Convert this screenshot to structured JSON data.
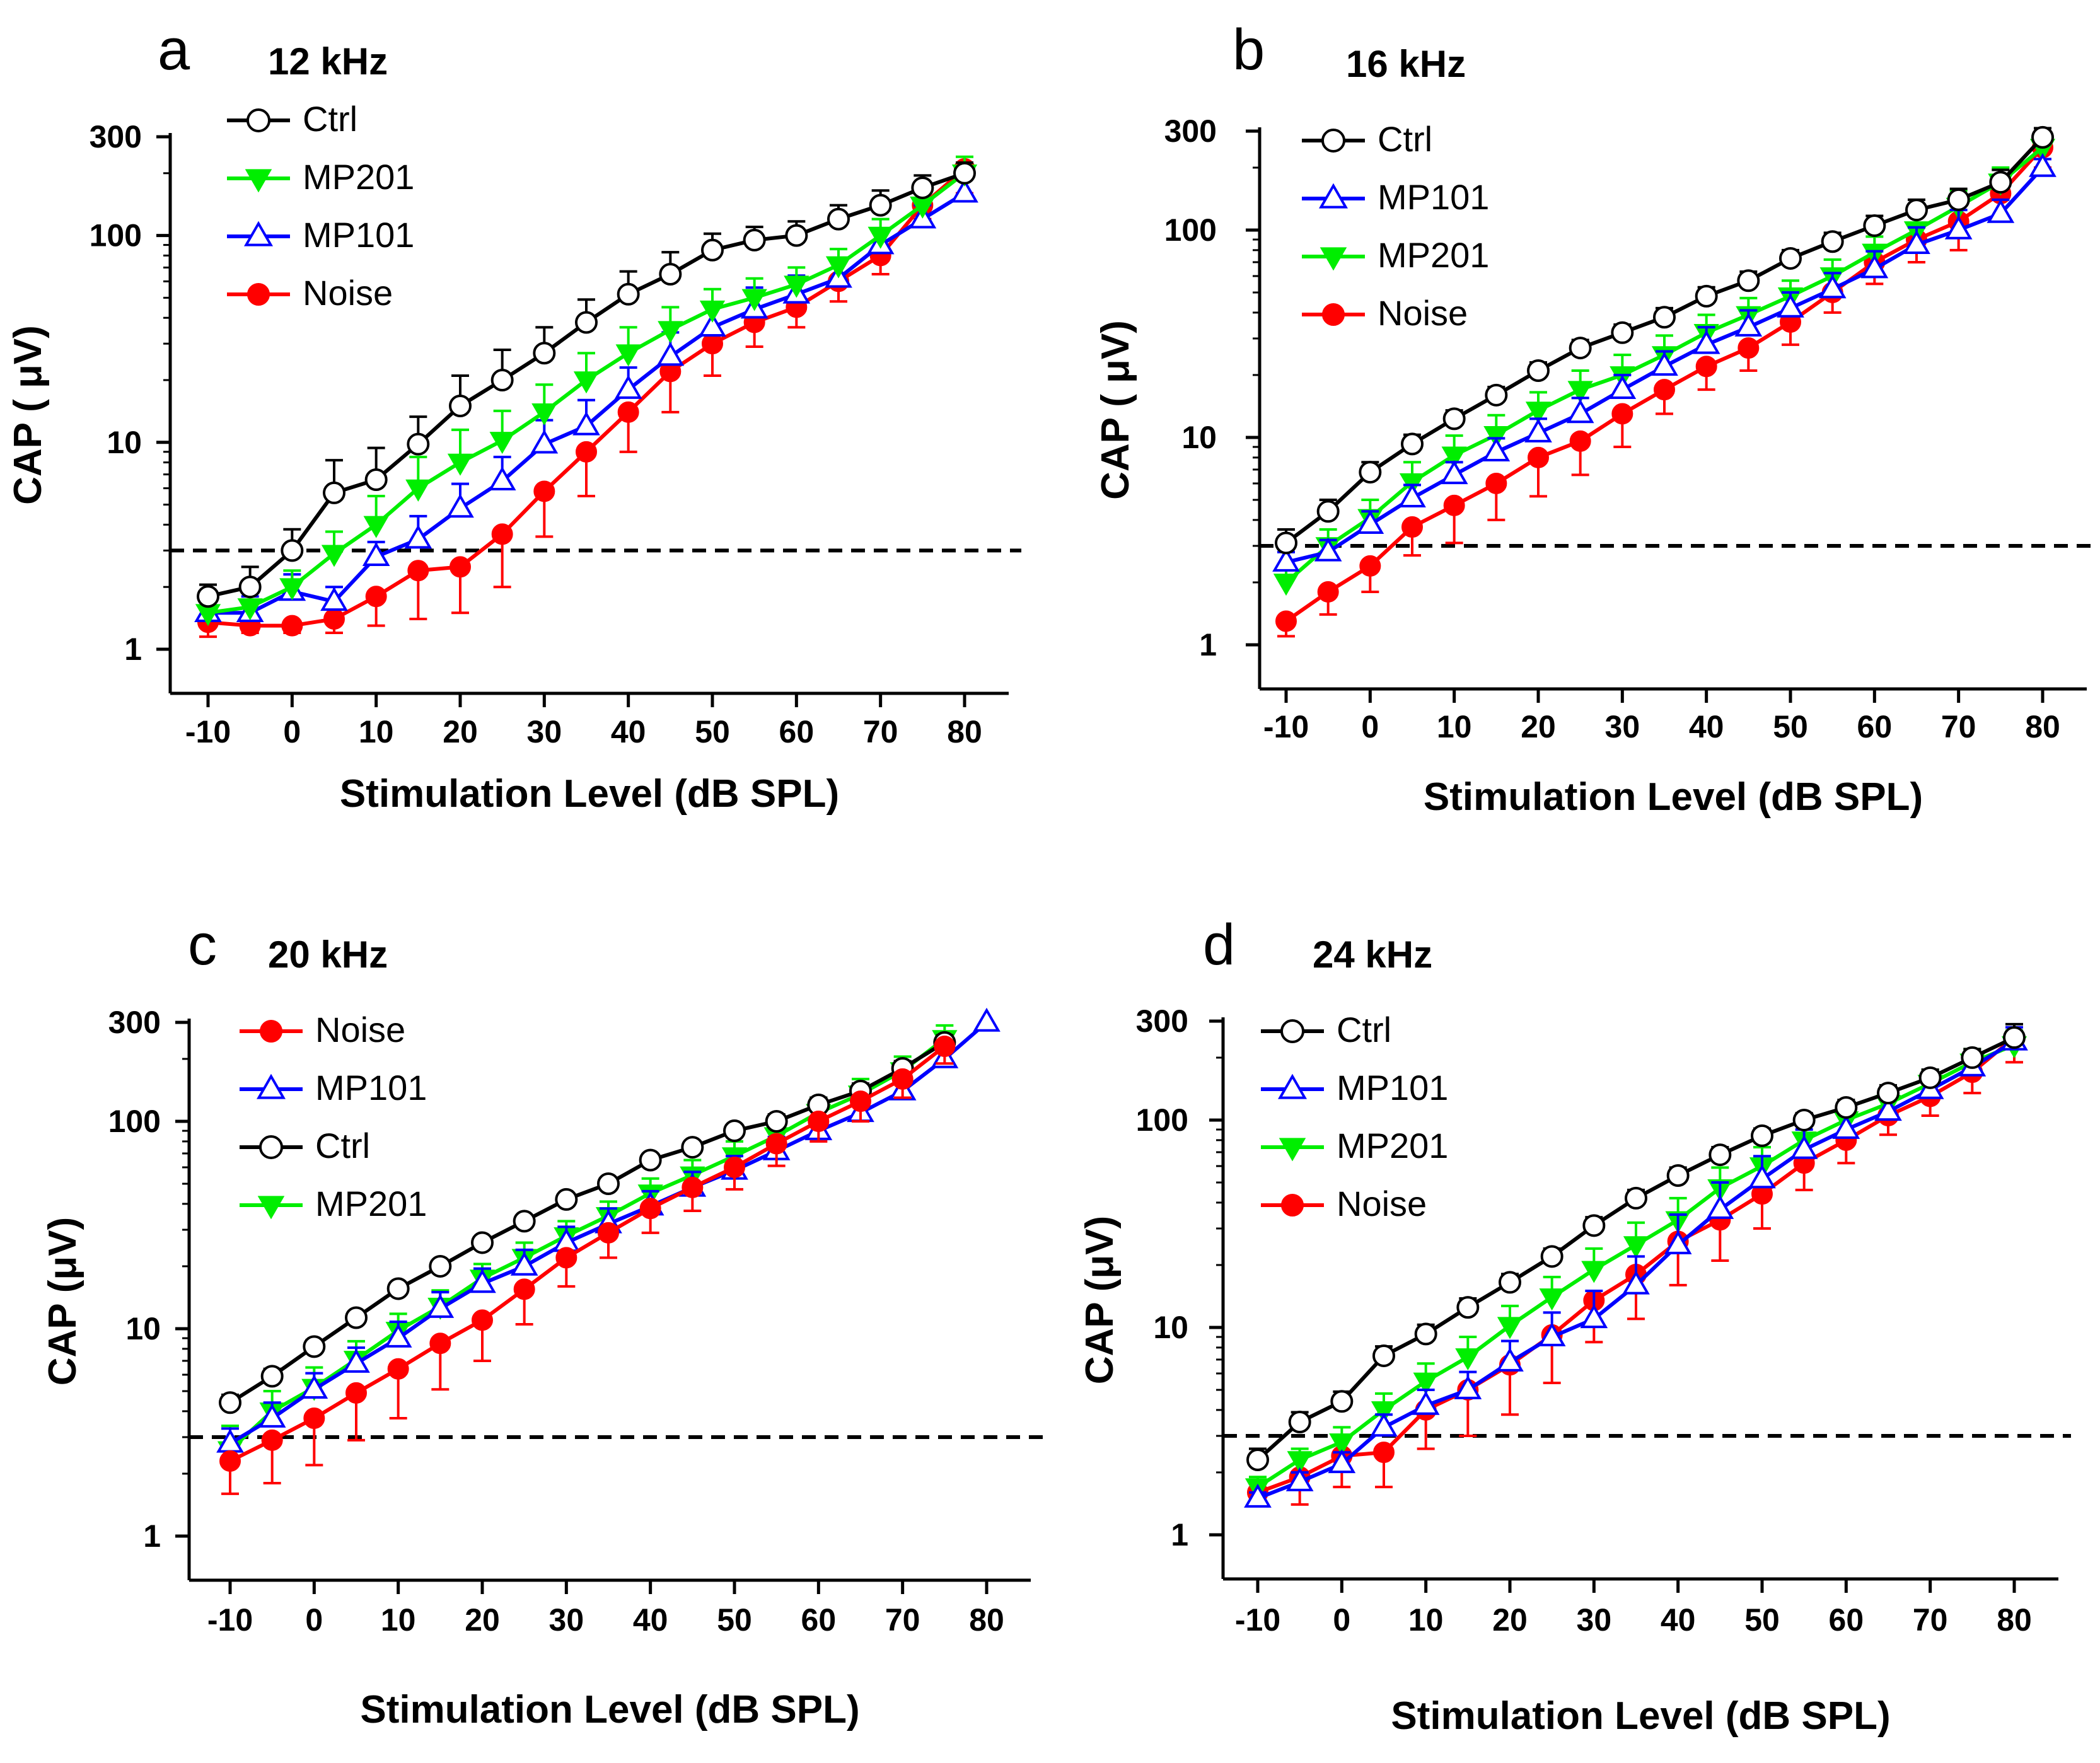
{
  "figure": {
    "y_ticks": [
      "1",
      "10",
      "100",
      "300"
    ],
    "x_ticks": [
      "-10",
      "0",
      "10",
      "20",
      "30",
      "40",
      "50",
      "60",
      "70",
      "80"
    ],
    "threshold_uV": 3
  },
  "series_styles": {
    "Ctrl": {
      "color": "#000000",
      "marker": "open-circle"
    },
    "MP201": {
      "color": "#00ee00",
      "marker": "filled-down-triangle"
    },
    "MP101": {
      "color": "#0000ff",
      "marker": "open-up-triangle"
    },
    "Noise": {
      "color": "#ff0000",
      "marker": "filled-circle"
    }
  },
  "chart_data": [
    {
      "type": "line",
      "panel_letter": "a",
      "title": "12 kHz",
      "xlabel": "Stimulation Level (dB SPL)",
      "ylabel": "CAP ( μV)",
      "yscale": "log",
      "ylim": [
        1,
        300
      ],
      "xlim": [
        -10,
        80
      ],
      "threshold_line": 3,
      "legend": [
        "Ctrl",
        "MP201",
        "MP101",
        "Noise"
      ],
      "series": [
        {
          "name": "Ctrl",
          "x": [
            -10,
            -5,
            0,
            5,
            10,
            15,
            20,
            25,
            30,
            35,
            40,
            45,
            50,
            55,
            60,
            65,
            70,
            75,
            80
          ],
          "values": [
            1.8,
            2.0,
            3.0,
            5.7,
            6.6,
            9.8,
            15,
            20,
            27,
            38,
            52,
            65,
            85,
            95,
            100,
            120,
            140,
            170,
            200
          ],
          "errors": [
            0.25,
            0.5,
            0.8,
            2.5,
            2.8,
            3.5,
            6,
            8,
            9,
            11,
            15,
            18,
            17,
            15,
            17,
            20,
            25,
            25,
            25
          ]
        },
        {
          "name": "MP201",
          "x": [
            -10,
            -5,
            0,
            5,
            10,
            15,
            20,
            25,
            30,
            35,
            40,
            45,
            50,
            55,
            60,
            65,
            70,
            75,
            80
          ],
          "values": [
            1.5,
            1.6,
            2.0,
            2.9,
            4.0,
            6.0,
            8.0,
            10.2,
            14,
            20,
            27,
            35,
            44,
            50,
            58,
            72,
            100,
            140,
            200
          ],
          "errors": [
            0.3,
            0.3,
            0.4,
            0.8,
            1.5,
            2.5,
            3.5,
            4,
            5,
            7,
            9,
            10,
            11,
            12,
            12,
            14,
            20,
            25,
            40
          ]
        },
        {
          "name": "MP101",
          "x": [
            -10,
            -5,
            0,
            5,
            10,
            15,
            20,
            25,
            30,
            35,
            40,
            45,
            50,
            55,
            60,
            65,
            70,
            75,
            80
          ],
          "values": [
            1.5,
            1.5,
            1.9,
            1.7,
            2.8,
            3.4,
            4.8,
            6.5,
            9.8,
            12,
            18,
            26,
            36,
            44,
            52,
            62,
            90,
            120,
            160
          ],
          "errors": [
            0.3,
            0.3,
            0.4,
            0.3,
            0.5,
            1,
            1.5,
            2,
            3,
            4,
            5,
            8,
            10,
            12,
            12,
            14,
            15,
            20,
            40
          ]
        },
        {
          "name": "Noise",
          "x": [
            -10,
            -5,
            0,
            5,
            10,
            15,
            20,
            25,
            30,
            35,
            40,
            45,
            50,
            55,
            60,
            65,
            70,
            75,
            80
          ],
          "values": [
            1.35,
            1.3,
            1.3,
            1.4,
            1.8,
            2.4,
            2.5,
            3.6,
            5.8,
            9,
            14,
            22,
            30,
            38,
            45,
            60,
            80,
            140,
            210
          ],
          "errors": [
            0.2,
            0.1,
            0.1,
            0.2,
            0.5,
            1,
            1,
            1.6,
            2.3,
            3.5,
            5,
            8,
            9,
            9,
            9,
            12,
            15,
            20,
            50
          ]
        }
      ]
    },
    {
      "type": "line",
      "panel_letter": "b",
      "title": "16 kHz",
      "xlabel": "Stimulation Level (dB SPL)",
      "ylabel": "CAP ( μV)",
      "yscale": "log",
      "ylim": [
        1,
        300
      ],
      "xlim": [
        -10,
        80
      ],
      "threshold_line": 3,
      "legend": [
        "Ctrl",
        "MP101",
        "MP201",
        "Noise"
      ],
      "series": [
        {
          "name": "Ctrl",
          "x": [
            -10,
            -5,
            0,
            5,
            10,
            15,
            20,
            25,
            30,
            35,
            40,
            45,
            50,
            55,
            60,
            65,
            70,
            75,
            80
          ],
          "values": [
            3.1,
            4.4,
            6.8,
            9.3,
            12.3,
            16,
            21,
            27,
            32,
            38,
            48,
            57,
            73,
            88,
            105,
            125,
            140,
            170,
            280
          ],
          "errors": [
            0.5,
            0.6,
            0.8,
            1,
            1.2,
            1.5,
            2,
            2.5,
            3,
            4,
            5,
            6,
            7,
            9,
            12,
            15,
            18,
            25,
            30
          ]
        },
        {
          "name": "MP101",
          "x": [
            -10,
            -5,
            0,
            5,
            10,
            15,
            20,
            25,
            30,
            35,
            40,
            45,
            50,
            55,
            60,
            65,
            70,
            75,
            80
          ],
          "values": [
            2.5,
            2.8,
            3.8,
            5.1,
            6.6,
            8.5,
            10.5,
            13,
            17,
            22,
            28,
            34,
            42,
            52,
            65,
            85,
            100,
            120,
            200
          ],
          "errors": [
            0.3,
            0.4,
            0.6,
            0.8,
            1,
            1.4,
            1.8,
            2.5,
            3,
            4,
            6,
            7,
            8,
            10,
            14,
            18,
            25,
            20,
            20
          ]
        },
        {
          "name": "MP201",
          "x": [
            -10,
            -5,
            0,
            5,
            10,
            15,
            20,
            25,
            30,
            35,
            40,
            45,
            50,
            55,
            60,
            65,
            70,
            75,
            80
          ],
          "values": [
            2.0,
            3.0,
            4.1,
            6.1,
            8.2,
            10.3,
            13.5,
            17,
            20,
            25,
            32,
            39,
            48,
            60,
            78,
            100,
            130,
            170,
            250
          ],
          "errors": [
            0.4,
            0.6,
            0.9,
            1.5,
            2,
            2.5,
            3,
            4,
            5,
            6,
            7,
            8,
            9,
            12,
            15,
            20,
            25,
            30,
            40
          ]
        },
        {
          "name": "Noise",
          "x": [
            -10,
            -5,
            0,
            5,
            10,
            15,
            20,
            25,
            30,
            35,
            40,
            45,
            50,
            55,
            60,
            65,
            70,
            75,
            80
          ],
          "values": [
            1.3,
            1.8,
            2.4,
            3.7,
            4.7,
            6.0,
            8.0,
            9.6,
            13,
            17,
            22,
            27,
            36,
            50,
            70,
            90,
            110,
            150,
            250
          ],
          "errors": [
            0.2,
            0.4,
            0.6,
            1,
            1.6,
            2,
            2.8,
            3,
            4,
            4,
            5,
            6,
            8,
            10,
            15,
            20,
            30,
            40,
            50
          ]
        }
      ]
    },
    {
      "type": "line",
      "panel_letter": "c",
      "title": "20 kHz",
      "xlabel": "Stimulation Level (dB SPL)",
      "ylabel": "CAP (μV)",
      "yscale": "log",
      "ylim": [
        1,
        300
      ],
      "xlim": [
        -10,
        80
      ],
      "threshold_line": 3,
      "legend": [
        "Noise",
        "MP101",
        "Ctrl",
        "MP201"
      ],
      "series": [
        {
          "name": "Noise",
          "x": [
            -10,
            -5,
            0,
            5,
            10,
            15,
            20,
            25,
            30,
            35,
            40,
            45,
            50,
            55,
            60,
            65,
            70,
            75
          ],
          "values": [
            2.3,
            2.9,
            3.7,
            4.9,
            6.4,
            8.5,
            11,
            15.5,
            22,
            29,
            38,
            48,
            60,
            78,
            100,
            125,
            160,
            230
          ],
          "errors": [
            0.7,
            1.1,
            1.5,
            2,
            2.7,
            3.4,
            4,
            5,
            6,
            7,
            9,
            11,
            13,
            17,
            20,
            25,
            30,
            40
          ]
        },
        {
          "name": "MP101",
          "x": [
            -10,
            -5,
            0,
            5,
            10,
            15,
            20,
            25,
            30,
            35,
            40,
            45,
            50,
            55,
            60,
            65,
            70,
            75,
            80
          ],
          "values": [
            2.8,
            3.7,
            5.1,
            6.8,
            9.0,
            12.5,
            16.5,
            20,
            26,
            32,
            39,
            48,
            58,
            72,
            90,
            110,
            140,
            200,
            300
          ],
          "errors": [
            0.5,
            0.7,
            1,
            1.3,
            1.8,
            2.5,
            3,
            4,
            5,
            6,
            7,
            9,
            10,
            12,
            15,
            18,
            25,
            30,
            0
          ]
        },
        {
          "name": "Ctrl",
          "x": [
            -10,
            -5,
            0,
            5,
            10,
            15,
            20,
            25,
            30,
            35,
            40,
            45,
            50,
            55,
            60,
            65,
            70,
            75
          ],
          "values": [
            4.4,
            5.9,
            8.2,
            11.3,
            15.6,
            20,
            26,
            33,
            42,
            50,
            65,
            75,
            90,
            100,
            120,
            140,
            180,
            240
          ],
          "errors": [
            0.4,
            0.5,
            0.6,
            0.8,
            1,
            1.2,
            1.5,
            2,
            2.5,
            3,
            4,
            5,
            6,
            8,
            10,
            12,
            15,
            20
          ]
        },
        {
          "name": "MP201",
          "x": [
            -10,
            -5,
            0,
            5,
            10,
            15,
            20,
            25,
            30,
            35,
            40,
            45,
            50,
            55,
            60,
            65,
            70,
            75
          ],
          "values": [
            2.6,
            4.0,
            5.2,
            7.1,
            9.8,
            12.8,
            17.5,
            22,
            28,
            35,
            45,
            55,
            68,
            85,
            110,
            135,
            175,
            250
          ],
          "errors": [
            0.8,
            1,
            1.3,
            1.6,
            2,
            2.5,
            3,
            4,
            5,
            6,
            8,
            10,
            12,
            15,
            20,
            25,
            30,
            40
          ]
        }
      ]
    },
    {
      "type": "line",
      "panel_letter": "d",
      "title": "24 kHz",
      "xlabel": "Stimulation Level (dB SPL)",
      "ylabel": "CAP (μV)",
      "yscale": "log",
      "ylim": [
        1,
        300
      ],
      "xlim": [
        -10,
        80
      ],
      "threshold_line": 3,
      "legend": [
        "Ctrl",
        "MP101",
        "MP201",
        "Noise"
      ],
      "series": [
        {
          "name": "Ctrl",
          "x": [
            -10,
            -5,
            0,
            5,
            10,
            15,
            20,
            25,
            30,
            35,
            40,
            45,
            50,
            55,
            60,
            65,
            70,
            75,
            80
          ],
          "values": [
            2.3,
            3.5,
            4.4,
            7.3,
            9.3,
            12.5,
            16.5,
            22,
            31,
            42,
            54,
            68,
            84,
            100,
            115,
            135,
            160,
            200,
            250
          ],
          "errors": [
            0.3,
            0.4,
            0.5,
            0.8,
            1,
            1.3,
            1.6,
            2,
            3,
            4,
            5,
            6,
            7,
            8,
            10,
            12,
            15,
            20,
            40
          ]
        },
        {
          "name": "MP101",
          "x": [
            -10,
            -5,
            0,
            5,
            10,
            15,
            20,
            25,
            30,
            35,
            40,
            45,
            50,
            55,
            60,
            65,
            70,
            75,
            80
          ],
          "values": [
            1.5,
            1.8,
            2.2,
            3.3,
            4.2,
            5.0,
            6.8,
            9.0,
            11,
            16,
            25,
            37,
            52,
            72,
            90,
            110,
            140,
            180,
            240
          ],
          "errors": [
            0.1,
            0.2,
            0.3,
            0.5,
            0.8,
            1.1,
            1.8,
            2.8,
            4,
            6,
            10,
            13,
            15,
            18,
            20,
            20,
            25,
            30,
            40
          ]
        },
        {
          "name": "MP201",
          "x": [
            -10,
            -5,
            0,
            5,
            10,
            15,
            20,
            25,
            30,
            35,
            40,
            45,
            50,
            55,
            60,
            65,
            70,
            75,
            80
          ],
          "values": [
            1.7,
            2.3,
            2.8,
            4.0,
            5.5,
            7.2,
            10.2,
            14,
            19,
            25,
            33,
            47,
            60,
            80,
            100,
            120,
            150,
            190,
            230
          ],
          "errors": [
            0.2,
            0.3,
            0.5,
            0.8,
            1.2,
            1.8,
            2.5,
            3.5,
            5,
            7,
            9,
            12,
            14,
            16,
            18,
            20,
            25,
            30,
            40
          ]
        },
        {
          "name": "Noise",
          "x": [
            -10,
            -5,
            0,
            5,
            10,
            15,
            20,
            25,
            30,
            35,
            40,
            45,
            50,
            55,
            60,
            65,
            70,
            75,
            80
          ],
          "values": [
            1.6,
            1.9,
            2.4,
            2.5,
            4.0,
            5.0,
            6.6,
            9.2,
            13.5,
            18,
            26,
            33,
            44,
            62,
            80,
            105,
            130,
            170,
            250
          ],
          "errors": [
            0.2,
            0.5,
            0.7,
            0.8,
            1.4,
            2,
            2.8,
            3.8,
            5,
            7,
            10,
            12,
            14,
            16,
            18,
            20,
            25,
            35,
            60
          ]
        }
      ]
    }
  ]
}
